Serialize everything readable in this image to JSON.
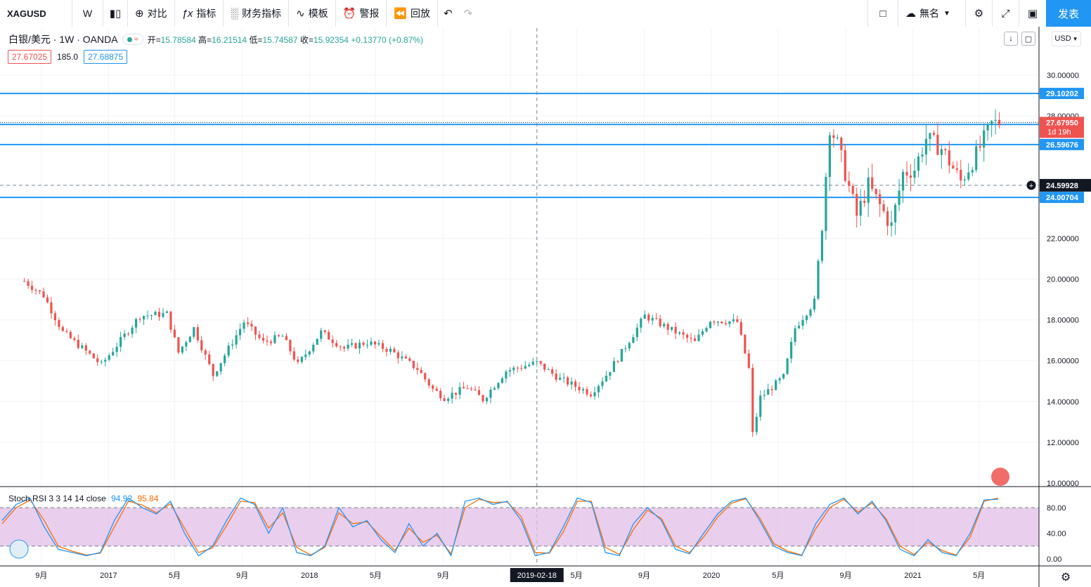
{
  "toolbar": {
    "symbol": "XAGUSD",
    "interval": "W",
    "compare_label": "对比",
    "indicators_label": "指标",
    "financials_label": "财务指标",
    "templates_label": "模板",
    "alert_label": "警报",
    "replay_label": "回放",
    "layout_name": "無名",
    "publish_label": "发表"
  },
  "legend": {
    "title": "白银/美元 · 1W · OANDA",
    "open_label": "开=",
    "open": "15.78584",
    "high_label": "高=",
    "high": "16.21514",
    "low_label": "低=",
    "low": "15.74587",
    "close_label": "收=",
    "close": "15.92354",
    "change": "+0.13770 (+0.87%)",
    "bid": "27.67025",
    "spread": "185.0",
    "ask": "27.68875"
  },
  "stoch": {
    "label": "Stoch RSI 3 3 14 14 close",
    "k_value": "94.92",
    "d_value": "95.84"
  },
  "currency": "USD",
  "crosshair_date": "2019-02-18",
  "crosshair_price": "24.59928",
  "colors": {
    "up": "#26a69a",
    "down": "#ef5350",
    "hline": "#2196f3",
    "k_line": "#2196f3",
    "d_line": "#ff6d00",
    "stoch_band": "#e1bee7"
  },
  "chart_data": [
    {
      "type": "candlestick",
      "title": "白银/美元 · 1W · OANDA",
      "ylim": [
        10,
        31
      ],
      "y_ticks": [
        "10.00000",
        "12.00000",
        "14.00000",
        "16.00000",
        "18.00000",
        "20.00000",
        "22.00000",
        "28.00000",
        "30.00000"
      ],
      "x_ticks": [
        "9月",
        "2017",
        "5月",
        "9月",
        "2018",
        "5月",
        "9月",
        "2019",
        "5月",
        "9月",
        "2020",
        "5月",
        "9月",
        "2021",
        "5月"
      ],
      "horizontal_lines": [
        29.10202,
        27.58197,
        26.59676,
        24.00704
      ],
      "price_labels": [
        {
          "value": 29.10202,
          "text": "29.10202"
        },
        {
          "value": 27.58197,
          "text": "27.58197"
        },
        {
          "value": 26.59676,
          "text": "26.59676"
        },
        {
          "value": 24.00704,
          "text": "24.00704"
        }
      ],
      "last_price": {
        "value": 27.6795,
        "text": "27.67950",
        "countdown": "1d 19h"
      },
      "series": [
        {
          "name": "XAGUSD",
          "anchors": [
            [
              "2016-08-01",
              19.9
            ],
            [
              "2016-09-05",
              19.2
            ],
            [
              "2016-10-10",
              17.4
            ],
            [
              "2016-11-28",
              16.3
            ],
            [
              "2016-12-19",
              15.8
            ],
            [
              "2017-02-27",
              18.2
            ],
            [
              "2017-04-17",
              18.3
            ],
            [
              "2017-05-08",
              16.4
            ],
            [
              "2017-06-05",
              17.6
            ],
            [
              "2017-07-10",
              15.3
            ],
            [
              "2017-09-04",
              17.9
            ],
            [
              "2017-10-09",
              16.9
            ],
            [
              "2017-11-13",
              17.2
            ],
            [
              "2017-12-11",
              15.8
            ],
            [
              "2018-01-22",
              17.4
            ],
            [
              "2018-03-05",
              16.6
            ],
            [
              "2018-04-16",
              16.9
            ],
            [
              "2018-05-28",
              16.5
            ],
            [
              "2018-07-16",
              15.6
            ],
            [
              "2018-08-13",
              14.6
            ],
            [
              "2018-09-03",
              14.2
            ],
            [
              "2018-10-15",
              14.7
            ],
            [
              "2018-11-12",
              14.1
            ],
            [
              "2018-12-24",
              15.5
            ],
            [
              "2019-02-18",
              15.9
            ],
            [
              "2019-04-01",
              15.1
            ],
            [
              "2019-05-27",
              14.4
            ],
            [
              "2019-06-24",
              15.3
            ],
            [
              "2019-07-22",
              16.4
            ],
            [
              "2019-09-02",
              18.2
            ],
            [
              "2019-10-14",
              17.6
            ],
            [
              "2019-12-02",
              16.9
            ],
            [
              "2019-12-30",
              18.0
            ],
            [
              "2020-02-17",
              17.9
            ],
            [
              "2020-03-09",
              15.6
            ],
            [
              "2020-03-16",
              12.4
            ],
            [
              "2020-03-30",
              14.2
            ],
            [
              "2020-05-11",
              15.2
            ],
            [
              "2020-06-01",
              17.6
            ],
            [
              "2020-07-06",
              18.9
            ],
            [
              "2020-07-20",
              22.7
            ],
            [
              "2020-08-03",
              27.5
            ],
            [
              "2020-08-17",
              26.6
            ],
            [
              "2020-09-21",
              23.1
            ],
            [
              "2020-10-12",
              24.6
            ],
            [
              "2020-11-23",
              22.6
            ],
            [
              "2020-12-14",
              25.2
            ],
            [
              "2021-01-04",
              25.4
            ],
            [
              "2021-01-25",
              26.9
            ],
            [
              "2021-02-22",
              26.4
            ],
            [
              "2021-03-29",
              24.8
            ],
            [
              "2021-04-26",
              26.1
            ],
            [
              "2021-05-24",
              27.6
            ],
            [
              "2021-06-07",
              27.68
            ]
          ]
        }
      ]
    },
    {
      "type": "line",
      "title": "Stoch RSI 3 3 14 14 close",
      "ylim": [
        0,
        100
      ],
      "y_ticks": [
        "0.00",
        "40.00",
        "80.00"
      ],
      "bands": [
        20,
        80
      ],
      "series": [
        {
          "name": "%K",
          "values": [
            60,
            85,
            95,
            50,
            15,
            10,
            5,
            10,
            60,
            95,
            80,
            70,
            90,
            40,
            5,
            20,
            60,
            95,
            85,
            40,
            80,
            10,
            5,
            20,
            80,
            50,
            60,
            30,
            10,
            55,
            20,
            40,
            5,
            90,
            95,
            85,
            90,
            60,
            5,
            10,
            50,
            95,
            88,
            10,
            5,
            55,
            80,
            60,
            15,
            8,
            40,
            70,
            90,
            95,
            60,
            20,
            10,
            5,
            55,
            85,
            95,
            70,
            90,
            60,
            15,
            5,
            30,
            10,
            5,
            40,
            92,
            93
          ]
        },
        {
          "name": "%D",
          "values": [
            55,
            80,
            92,
            60,
            20,
            12,
            6,
            9,
            50,
            90,
            84,
            72,
            86,
            48,
            10,
            17,
            52,
            90,
            88,
            48,
            72,
            18,
            6,
            18,
            72,
            55,
            58,
            35,
            13,
            48,
            26,
            37,
            8,
            80,
            93,
            88,
            89,
            66,
            10,
            9,
            42,
            90,
            90,
            18,
            7,
            46,
            76,
            63,
            20,
            10,
            34,
            65,
            87,
            94,
            64,
            24,
            12,
            6,
            47,
            80,
            93,
            73,
            87,
            63,
            20,
            7,
            26,
            13,
            6,
            34,
            90,
            95
          ]
        }
      ]
    }
  ]
}
